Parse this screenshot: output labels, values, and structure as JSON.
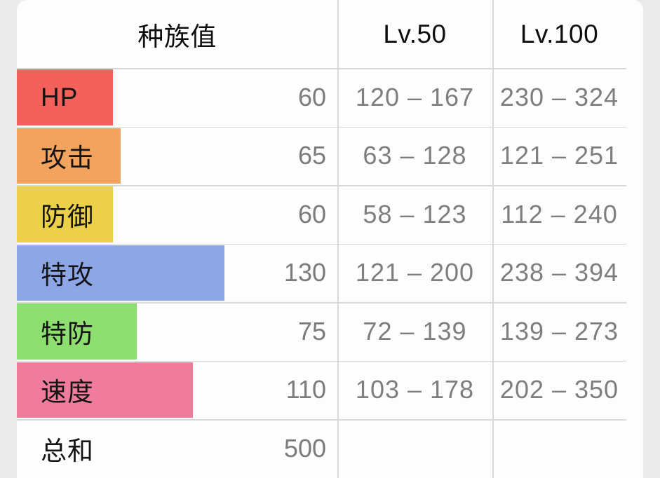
{
  "table": {
    "header": {
      "stats": "种族值",
      "lv50": "Lv.50",
      "lv100": "Lv.100"
    },
    "rows": [
      {
        "key": "hp",
        "label": "HP",
        "value": "60",
        "lv50": "120 – 167",
        "lv100": "230 – 324",
        "color": "#f4605b"
      },
      {
        "key": "attack",
        "label": "攻击",
        "value": "65",
        "lv50": "63 – 128",
        "lv100": "121 – 251",
        "color": "#f2a45f"
      },
      {
        "key": "defense",
        "label": "防御",
        "value": "60",
        "lv50": "58 – 123",
        "lv100": "112 – 240",
        "color": "#ecd04a"
      },
      {
        "key": "sp-attack",
        "label": "特攻",
        "value": "130",
        "lv50": "121 – 200",
        "lv100": "238 – 394",
        "color": "#8ca6e6"
      },
      {
        "key": "sp-defense",
        "label": "特防",
        "value": "75",
        "lv50": "72 – 139",
        "lv100": "139 – 273",
        "color": "#8edf6f"
      },
      {
        "key": "speed",
        "label": "速度",
        "value": "110",
        "lv50": "103 – 178",
        "lv100": "202 – 350",
        "color": "#ef7b9d"
      }
    ],
    "total": {
      "label": "总和",
      "value": "500",
      "lv50": "",
      "lv100": ""
    }
  },
  "chart_data": {
    "type": "bar",
    "orientation": "horizontal",
    "title": "种族值",
    "categories": [
      "HP",
      "攻击",
      "防御",
      "特攻",
      "特防",
      "速度"
    ],
    "values": [
      60,
      65,
      60,
      130,
      75,
      110
    ],
    "bar_colors": [
      "#f4605b",
      "#f2a45f",
      "#ecd04a",
      "#8ca6e6",
      "#8edf6f",
      "#ef7b9d"
    ],
    "total": 500,
    "columns": [
      "种族值",
      "Lv.50",
      "Lv.100"
    ],
    "lv50_ranges": [
      [
        120,
        167
      ],
      [
        63,
        128
      ],
      [
        58,
        123
      ],
      [
        121,
        200
      ],
      [
        72,
        139
      ],
      [
        103,
        178
      ]
    ],
    "lv100_ranges": [
      [
        230,
        324
      ],
      [
        121,
        251
      ],
      [
        112,
        240
      ],
      [
        238,
        394
      ],
      [
        139,
        273
      ],
      [
        202,
        350
      ]
    ],
    "legend": "none",
    "grid": "table-lines"
  }
}
